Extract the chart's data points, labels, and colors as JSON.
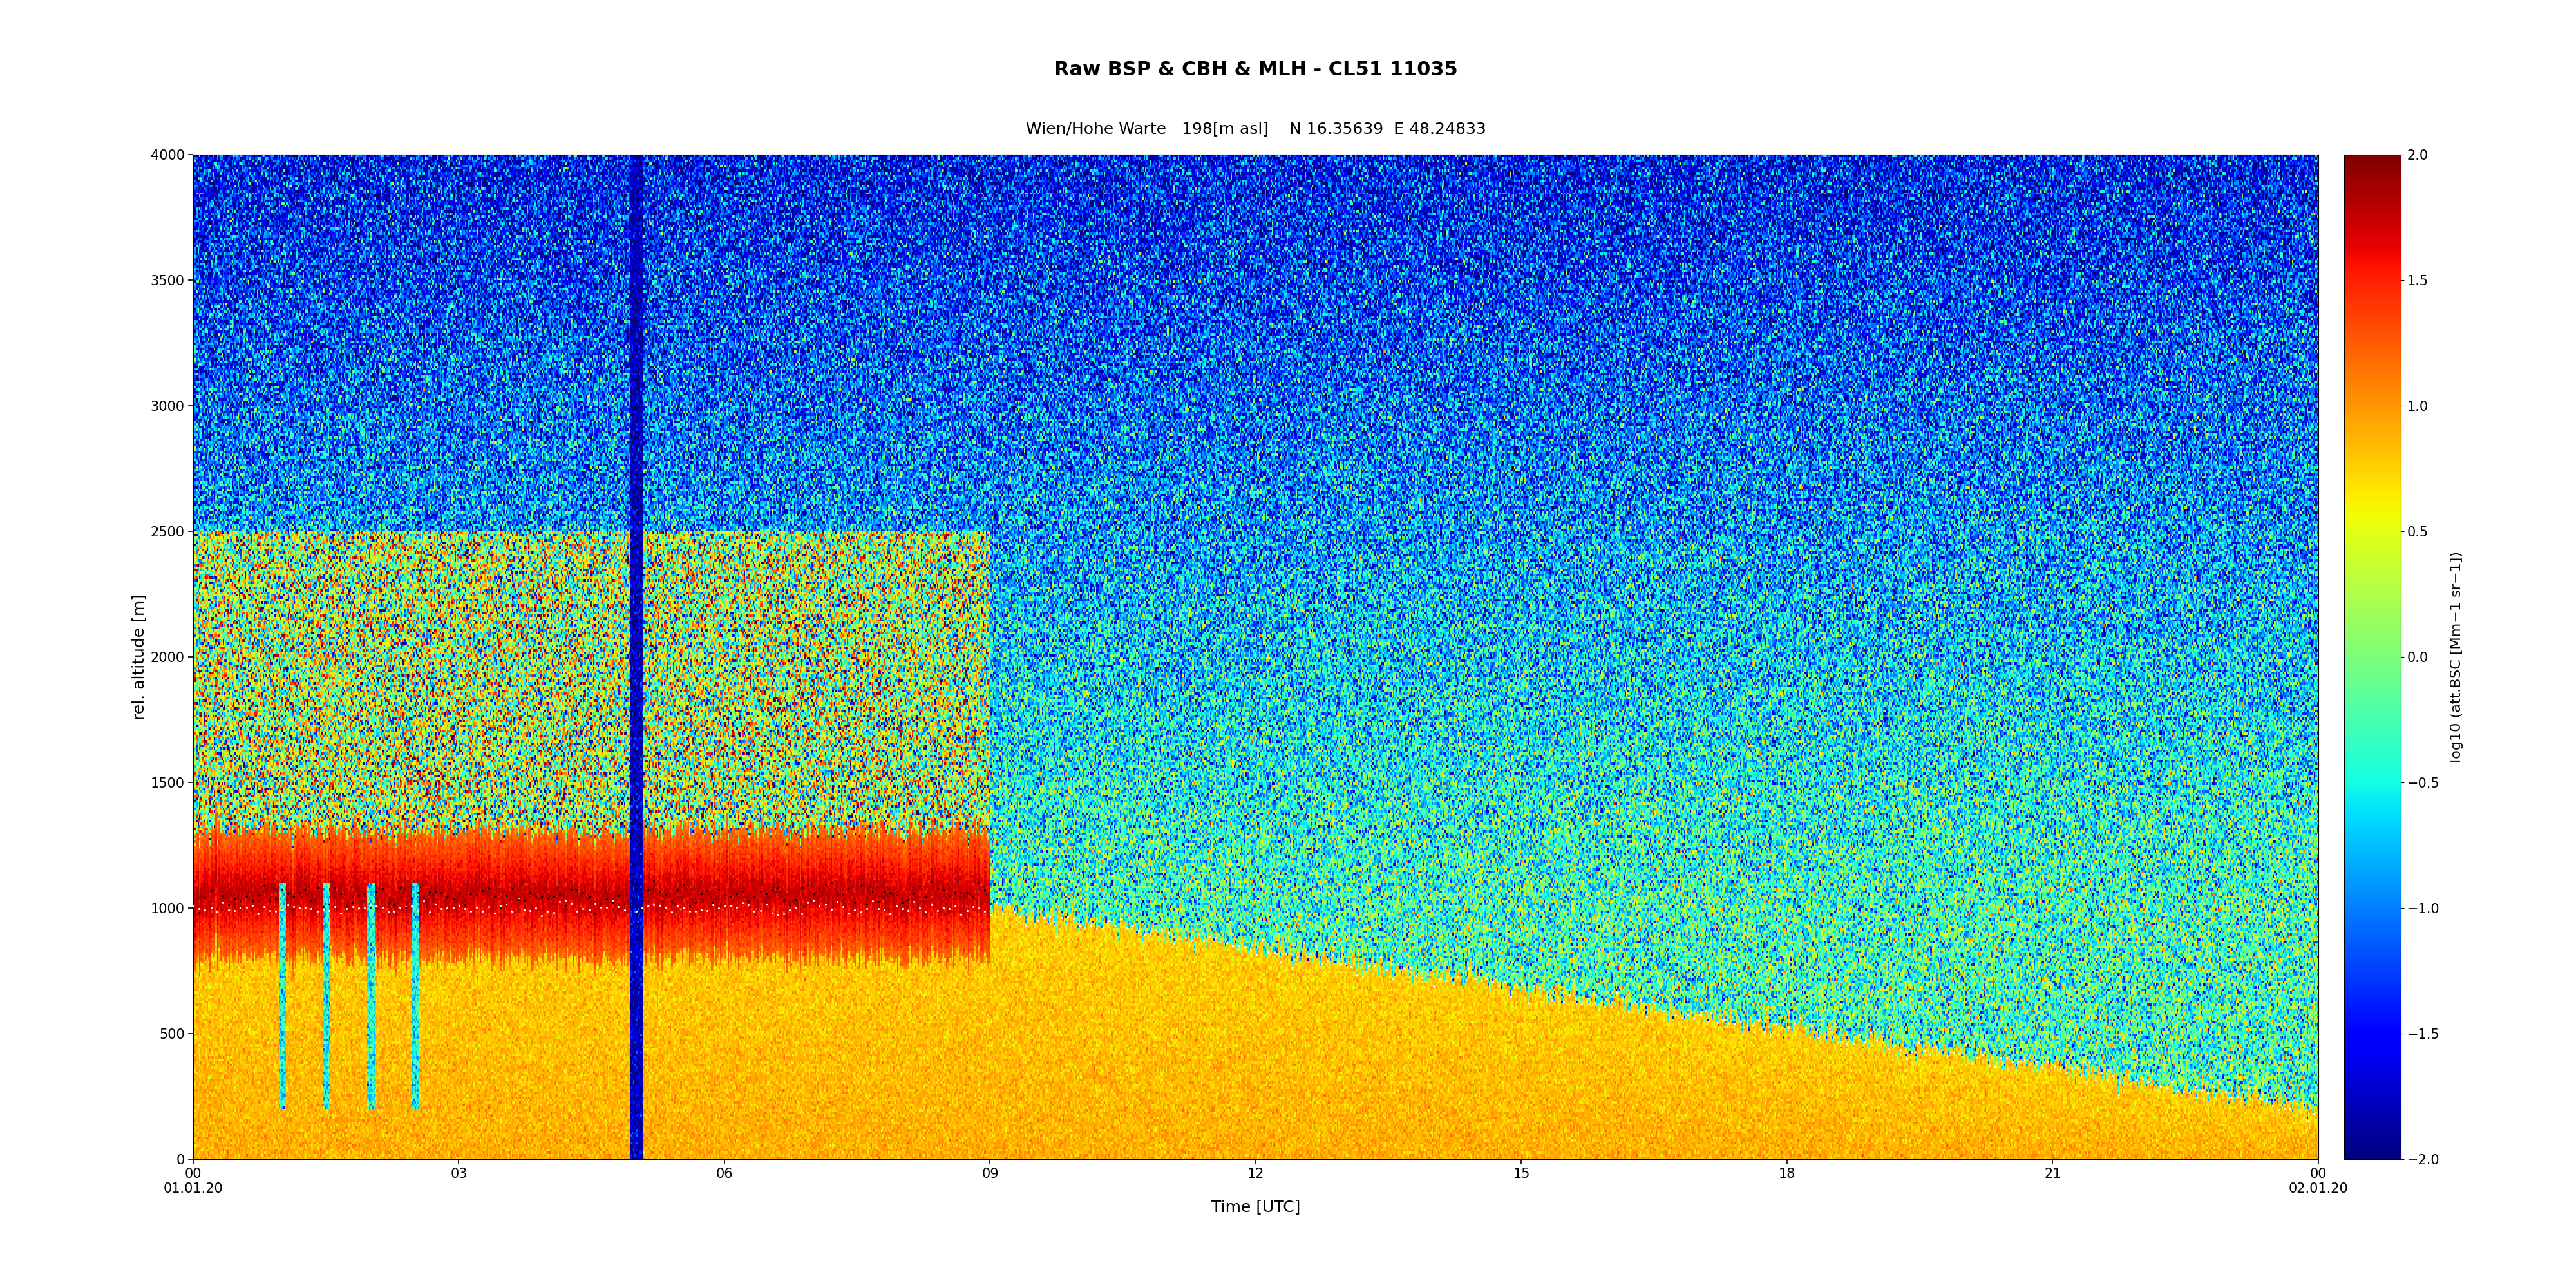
{
  "title_line1": "Raw BSP & CBH & MLH - CL51 11035",
  "title_line2": "Wien/Hohe Warte   198[m asl]    N 16.35639  E 48.24833",
  "xlabel": "Time [UTC]",
  "ylabel": "rel. altitude [m]",
  "colorbar_label": "log10 (att.BSC [Mm−1 sr−1])",
  "xlim": [
    0,
    24
  ],
  "ylim": [
    0,
    4000
  ],
  "clim": [
    -2.0,
    2.0
  ],
  "xtick_labels": [
    "00\n01.01.20",
    "03",
    "06",
    "09",
    "12",
    "15",
    "18",
    "21",
    "00\n02.01.20"
  ],
  "xtick_positions": [
    0,
    3,
    6,
    9,
    12,
    15,
    18,
    21,
    24
  ],
  "ytick_positions": [
    0,
    500,
    1000,
    1500,
    2000,
    2500,
    3000,
    3500,
    4000
  ],
  "ytick_labels": [
    "0",
    "500",
    "1000",
    "1500",
    "2000",
    "2500",
    "3000",
    "3500",
    "4000"
  ],
  "ctick_positions": [
    -2.0,
    -1.5,
    -1.0,
    -0.5,
    0.0,
    0.5,
    1.0,
    1.5,
    2.0
  ],
  "ctick_labels": [
    "−2.0",
    "−1.5",
    "−1.0",
    "−0.5",
    "0.0",
    "0.5",
    "1.0",
    "1.5",
    "2.0"
  ],
  "noise_seed": 42,
  "nx": 1440,
  "ny": 400,
  "background_color": "#ffffff",
  "title_fontsize": 22,
  "subtitle_fontsize": 18,
  "label_fontsize": 16,
  "tick_fontsize": 15
}
